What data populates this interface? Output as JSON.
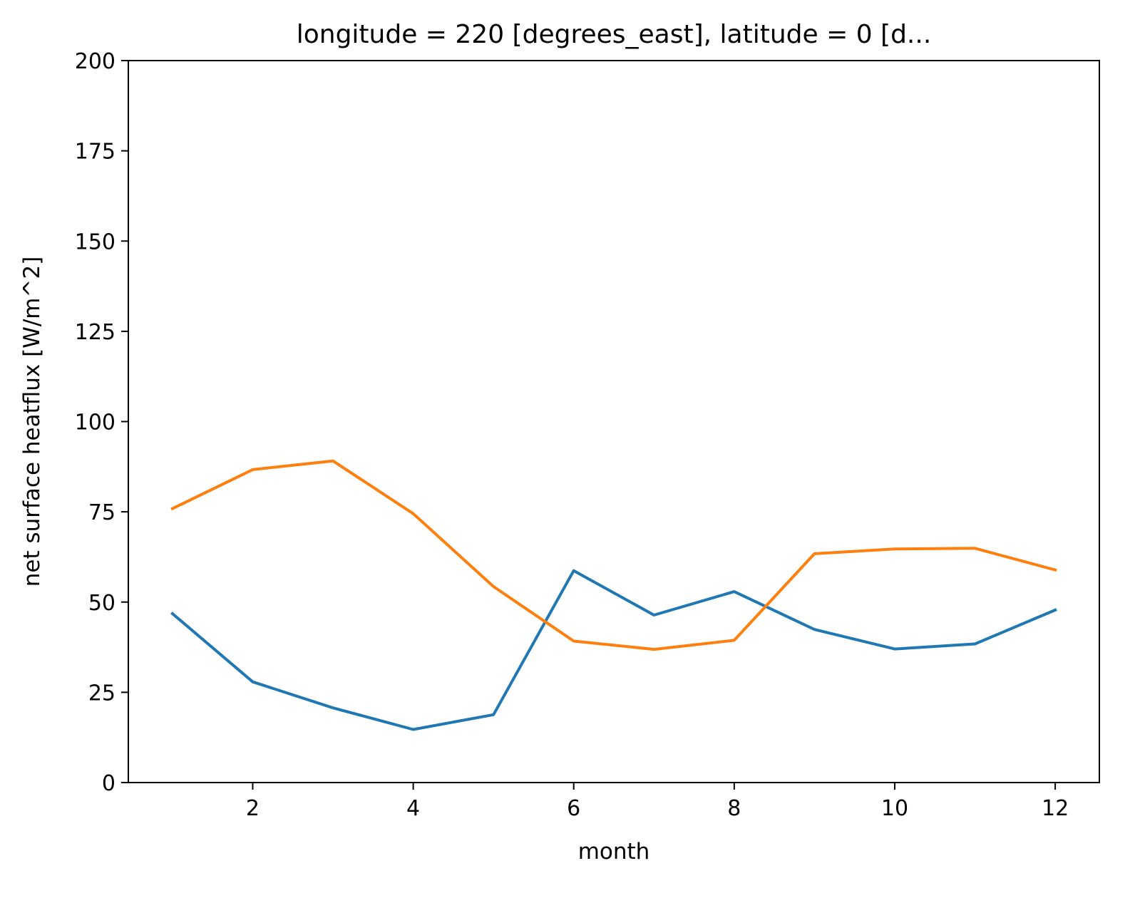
{
  "chart_data": {
    "type": "line",
    "title": "longitude = 220 [degrees_east], latitude = 0 [d...",
    "xlabel": "month",
    "ylabel": "net surface heatflux [W/m^2]",
    "x": [
      1,
      2,
      3,
      4,
      5,
      6,
      7,
      8,
      9,
      10,
      11,
      12
    ],
    "xlim": [
      0.45,
      12.55
    ],
    "ylim": [
      0,
      200
    ],
    "xticks": [
      2,
      4,
      6,
      8,
      10,
      12
    ],
    "yticks": [
      0,
      25,
      50,
      75,
      100,
      125,
      150,
      175,
      200
    ],
    "grid": false,
    "legend": "none",
    "series": [
      {
        "color": "#1f77b4",
        "values": [
          46.8,
          27.9,
          20.7,
          14.7,
          18.8,
          58.7,
          46.4,
          52.9,
          42.4,
          37.0,
          38.4,
          47.8
        ]
      },
      {
        "color": "#ff7f0e",
        "values": [
          75.9,
          86.7,
          89.1,
          74.5,
          54.3,
          39.2,
          36.9,
          39.4,
          63.4,
          64.7,
          64.9,
          58.9
        ]
      }
    ]
  }
}
